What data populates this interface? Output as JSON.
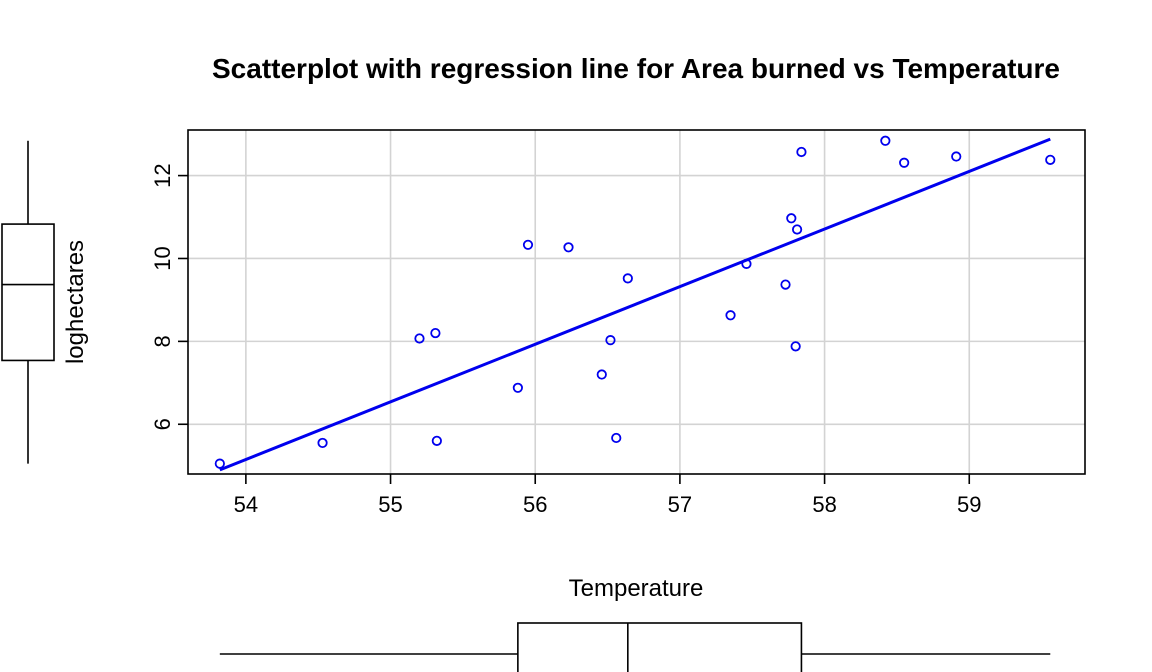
{
  "chart_data": {
    "type": "scatter",
    "title": "Scatterplot with regression line for Area burned vs Temperature",
    "xlabel": "Temperature",
    "ylabel": "loghectares",
    "xlim": [
      53.6,
      59.8
    ],
    "ylim": [
      4.8,
      13.1
    ],
    "x_ticks": [
      54,
      55,
      56,
      57,
      58,
      59
    ],
    "y_ticks": [
      6,
      8,
      10,
      12
    ],
    "grid": true,
    "point_color": "#0000ee",
    "line_color": "#0000ee",
    "points": [
      {
        "x": 53.82,
        "y": 5.05
      },
      {
        "x": 54.53,
        "y": 5.55
      },
      {
        "x": 55.2,
        "y": 8.07
      },
      {
        "x": 55.31,
        "y": 8.2
      },
      {
        "x": 55.32,
        "y": 5.6
      },
      {
        "x": 55.88,
        "y": 6.88
      },
      {
        "x": 55.95,
        "y": 10.33
      },
      {
        "x": 56.23,
        "y": 10.27
      },
      {
        "x": 56.46,
        "y": 7.2
      },
      {
        "x": 56.52,
        "y": 8.03
      },
      {
        "x": 56.56,
        "y": 5.67
      },
      {
        "x": 56.64,
        "y": 9.52
      },
      {
        "x": 57.35,
        "y": 8.63
      },
      {
        "x": 57.46,
        "y": 9.87
      },
      {
        "x": 57.73,
        "y": 9.37
      },
      {
        "x": 57.77,
        "y": 10.97
      },
      {
        "x": 57.8,
        "y": 7.88
      },
      {
        "x": 57.81,
        "y": 10.7
      },
      {
        "x": 57.84,
        "y": 12.57
      },
      {
        "x": 58.42,
        "y": 12.84
      },
      {
        "x": 58.55,
        "y": 12.31
      },
      {
        "x": 58.91,
        "y": 12.46
      },
      {
        "x": 59.56,
        "y": 12.38
      }
    ],
    "regression_line": {
      "x": [
        53.82,
        59.56
      ],
      "y": [
        4.9,
        12.88
      ]
    },
    "boxplot_x": {
      "min": 53.82,
      "q1": 55.88,
      "median": 56.64,
      "q3": 57.84,
      "max": 59.56
    },
    "boxplot_y": {
      "min": 5.05,
      "q1": 7.54,
      "median": 9.37,
      "q3": 10.83,
      "max": 12.84
    }
  }
}
